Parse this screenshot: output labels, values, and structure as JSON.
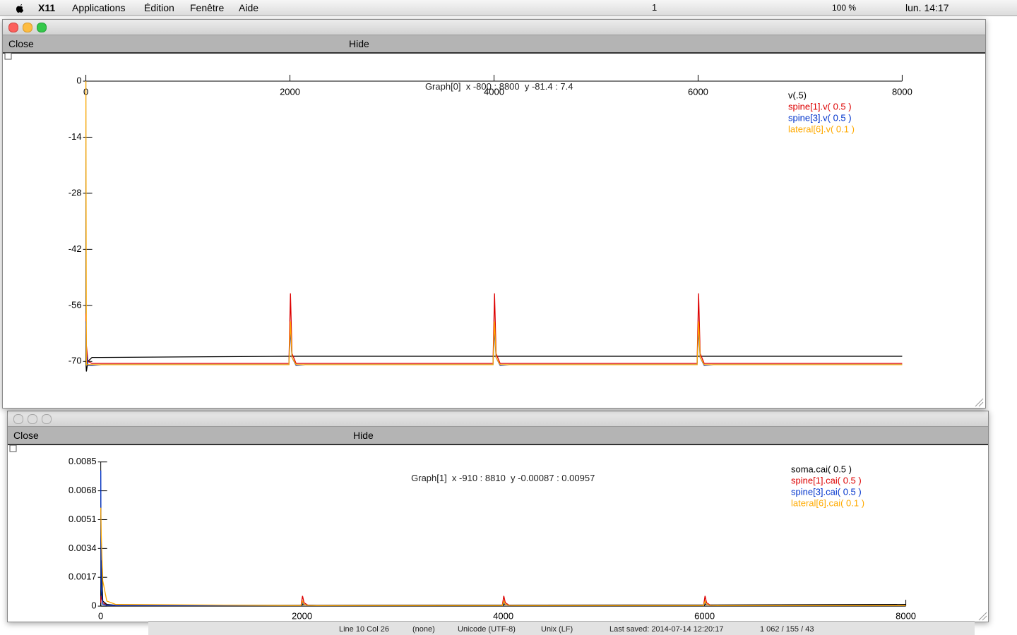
{
  "menubar": {
    "app": "X11",
    "items": [
      "Applications",
      "Édition",
      "Fenêtre",
      "Aide"
    ],
    "status": [
      "1",
      "100 %",
      "lun. 14:17"
    ]
  },
  "windows": [
    {
      "title": "Graph[0]  x -800 : 8800  y -81.4 : 7.4",
      "buttons": [
        "Close",
        "Hide"
      ]
    },
    {
      "title": "Graph[1]  x -910 : 8810  y -0.00087 : 0.00957",
      "buttons": [
        "Close",
        "Hide"
      ]
    }
  ],
  "chart_data": [
    {
      "type": "line",
      "xlim": [
        -800,
        8800
      ],
      "ylim": [
        -81.4,
        7.4
      ],
      "xticks": [
        0,
        2000,
        4000,
        6000,
        8000
      ],
      "yticks": [
        0,
        -14,
        -28,
        -42,
        -56,
        -70
      ],
      "x": [
        0,
        5,
        20,
        60,
        150,
        1990,
        2005,
        2020,
        2060,
        2150,
        3990,
        4005,
        4020,
        4060,
        4150,
        5990,
        6005,
        6020,
        6060,
        6150,
        8000
      ],
      "series": [
        {
          "name": "v(.5)",
          "color": "#000000",
          "values": [
            -70,
            -72.5,
            -70,
            -69,
            -69,
            -68.7,
            -68.7,
            -68.7,
            -68.7,
            -68.7,
            -68.7,
            -68.7,
            -68.7,
            -68.7,
            -68.7,
            -68.7,
            -68.7,
            -68.7,
            -68.7,
            -68.7,
            -68.7
          ]
        },
        {
          "name": "spine[1].v( 0.5 )",
          "color": "#dd0000",
          "values": [
            -58,
            -66,
            -70,
            -70.5,
            -70.5,
            -70.5,
            -53,
            -68,
            -70.5,
            -70.5,
            -70.5,
            -53,
            -68,
            -70.5,
            -70.5,
            -70.5,
            -53,
            -68,
            -70.5,
            -70.5,
            -70.5
          ]
        },
        {
          "name": "spine[3].v( 0.5 )",
          "color": "#0033cc",
          "values": [
            -60,
            -68,
            -71,
            -71,
            -70.8,
            -70.8,
            -62,
            -69,
            -71,
            -70.8,
            -70.8,
            -62,
            -69,
            -71,
            -70.8,
            -70.8,
            -62,
            -69,
            -71,
            -70.8,
            -70.8
          ]
        },
        {
          "name": "lateral[6].v( 0.1 )",
          "color": "#ffaa00",
          "values": [
            0,
            -70.8,
            -70.8,
            -70.8,
            -70.8,
            -70.8,
            -60,
            -69,
            -70.8,
            -70.8,
            -70.8,
            -60,
            -69,
            -70.8,
            -70.8,
            -70.8,
            -60,
            -69,
            -70.8,
            -70.8,
            -70.8
          ]
        }
      ]
    },
    {
      "type": "line",
      "xlim": [
        -910,
        8810
      ],
      "ylim": [
        -0.00087,
        0.00957
      ],
      "xticks": [
        0,
        2000,
        4000,
        6000,
        8000
      ],
      "yticks": [
        0,
        0.0017,
        0.0034,
        0.0051,
        0.0068,
        0.0085
      ],
      "x": [
        0,
        5,
        20,
        60,
        150,
        1990,
        2005,
        2020,
        2060,
        2150,
        3990,
        4005,
        4020,
        4060,
        4150,
        5990,
        6005,
        6020,
        6060,
        6150,
        8000
      ],
      "series": [
        {
          "name": "soma.cai( 0.5 )",
          "color": "#000000",
          "values": [
            0,
            0.0027,
            0.0003,
            0.0001,
            5e-05,
            5e-05,
            0.0001,
            8e-05,
            6e-05,
            5e-05,
            6e-05,
            0.0001,
            8e-05,
            6e-05,
            6e-05,
            7e-05,
            0.0001,
            8e-05,
            7e-05,
            7e-05,
            0.0001
          ]
        },
        {
          "name": "spine[1].cai( 0.5 )",
          "color": "#dd0000",
          "values": [
            0.0002,
            0.0006,
            0.0002,
            5e-05,
            3e-05,
            3e-05,
            0.0006,
            0.0002,
            5e-05,
            3e-05,
            3e-05,
            0.0006,
            0.0002,
            5e-05,
            3e-05,
            3e-05,
            0.0006,
            0.0002,
            5e-05,
            3e-05,
            3e-05
          ]
        },
        {
          "name": "spine[3].cai( 0.5 )",
          "color": "#0033cc",
          "values": [
            0.008,
            0.001,
            0.0001,
            5e-05,
            3e-05,
            3e-05,
            0.0002,
            0.0001,
            4e-05,
            3e-05,
            3e-05,
            0.0002,
            0.0001,
            4e-05,
            3e-05,
            3e-05,
            0.0002,
            0.0001,
            4e-05,
            3e-05,
            3e-05
          ]
        },
        {
          "name": "lateral[6].cai( 0.1 )",
          "color": "#ffaa00",
          "values": [
            0.0058,
            0.0042,
            0.0015,
            0.0003,
            0.0001,
            3e-05,
            0.0003,
            0.0001,
            4e-05,
            3e-05,
            3e-05,
            0.0003,
            0.0001,
            4e-05,
            3e-05,
            3e-05,
            0.0003,
            0.0001,
            4e-05,
            3e-05,
            3e-05
          ]
        }
      ]
    }
  ],
  "statusbar": {
    "items": [
      "Line 10 Col 26",
      "(none)",
      "Unicode (UTF-8)",
      "Unix (LF)",
      "Last saved: 2014-07-14 12:20:17",
      "1 062 / 155 / 43"
    ]
  }
}
